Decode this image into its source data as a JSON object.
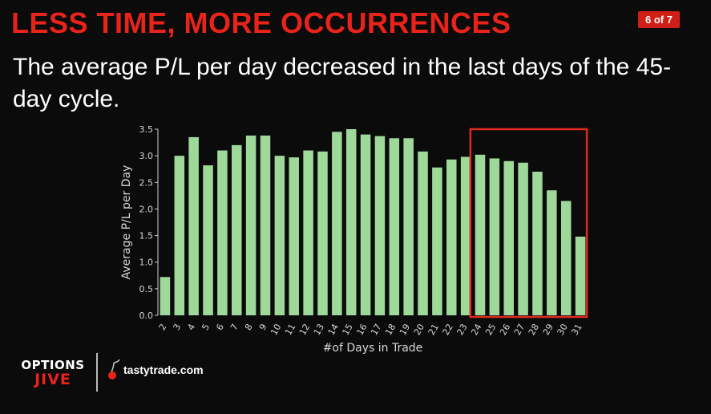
{
  "header": {
    "title": "LESS TIME, MORE OCCURRENCES",
    "page_badge": "6 of 7",
    "subtitle": "The average P/L per day decreased in the last days of the 45-day cycle."
  },
  "branding": {
    "show_name_line1": "OPTIONS",
    "show_name_line2": "JIVE",
    "company": "tastytrade.com"
  },
  "colors": {
    "title": "#e8231a",
    "bar": "#9ed99a",
    "highlight_box": "#e02a1e",
    "background": "#0b0b0b"
  },
  "chart_data": {
    "type": "bar",
    "categories": [
      "2",
      "3",
      "4",
      "5",
      "6",
      "7",
      "8",
      "9",
      "10",
      "11",
      "12",
      "13",
      "14",
      "15",
      "16",
      "17",
      "18",
      "19",
      "20",
      "21",
      "22",
      "23",
      "24",
      "25",
      "26",
      "27",
      "28",
      "29",
      "30",
      "31"
    ],
    "values": [
      0.72,
      3.0,
      3.35,
      2.82,
      3.1,
      3.2,
      3.38,
      3.38,
      3.0,
      2.97,
      3.1,
      3.08,
      3.45,
      3.5,
      3.4,
      3.37,
      3.33,
      3.33,
      3.08,
      2.78,
      2.93,
      2.98,
      3.02,
      2.95,
      2.9,
      2.87,
      2.7,
      2.35,
      2.15,
      1.48
    ],
    "title": "",
    "xlabel": "#of Days in Trade",
    "ylabel": "Average P/L per Day",
    "ylim": [
      0,
      3.5
    ],
    "yticks": [
      "0.0",
      "0.5",
      "1.0",
      "1.5",
      "2.0",
      "2.5",
      "3.0",
      "3.5"
    ],
    "grid": false,
    "highlight_range": [
      "24",
      "31"
    ]
  }
}
